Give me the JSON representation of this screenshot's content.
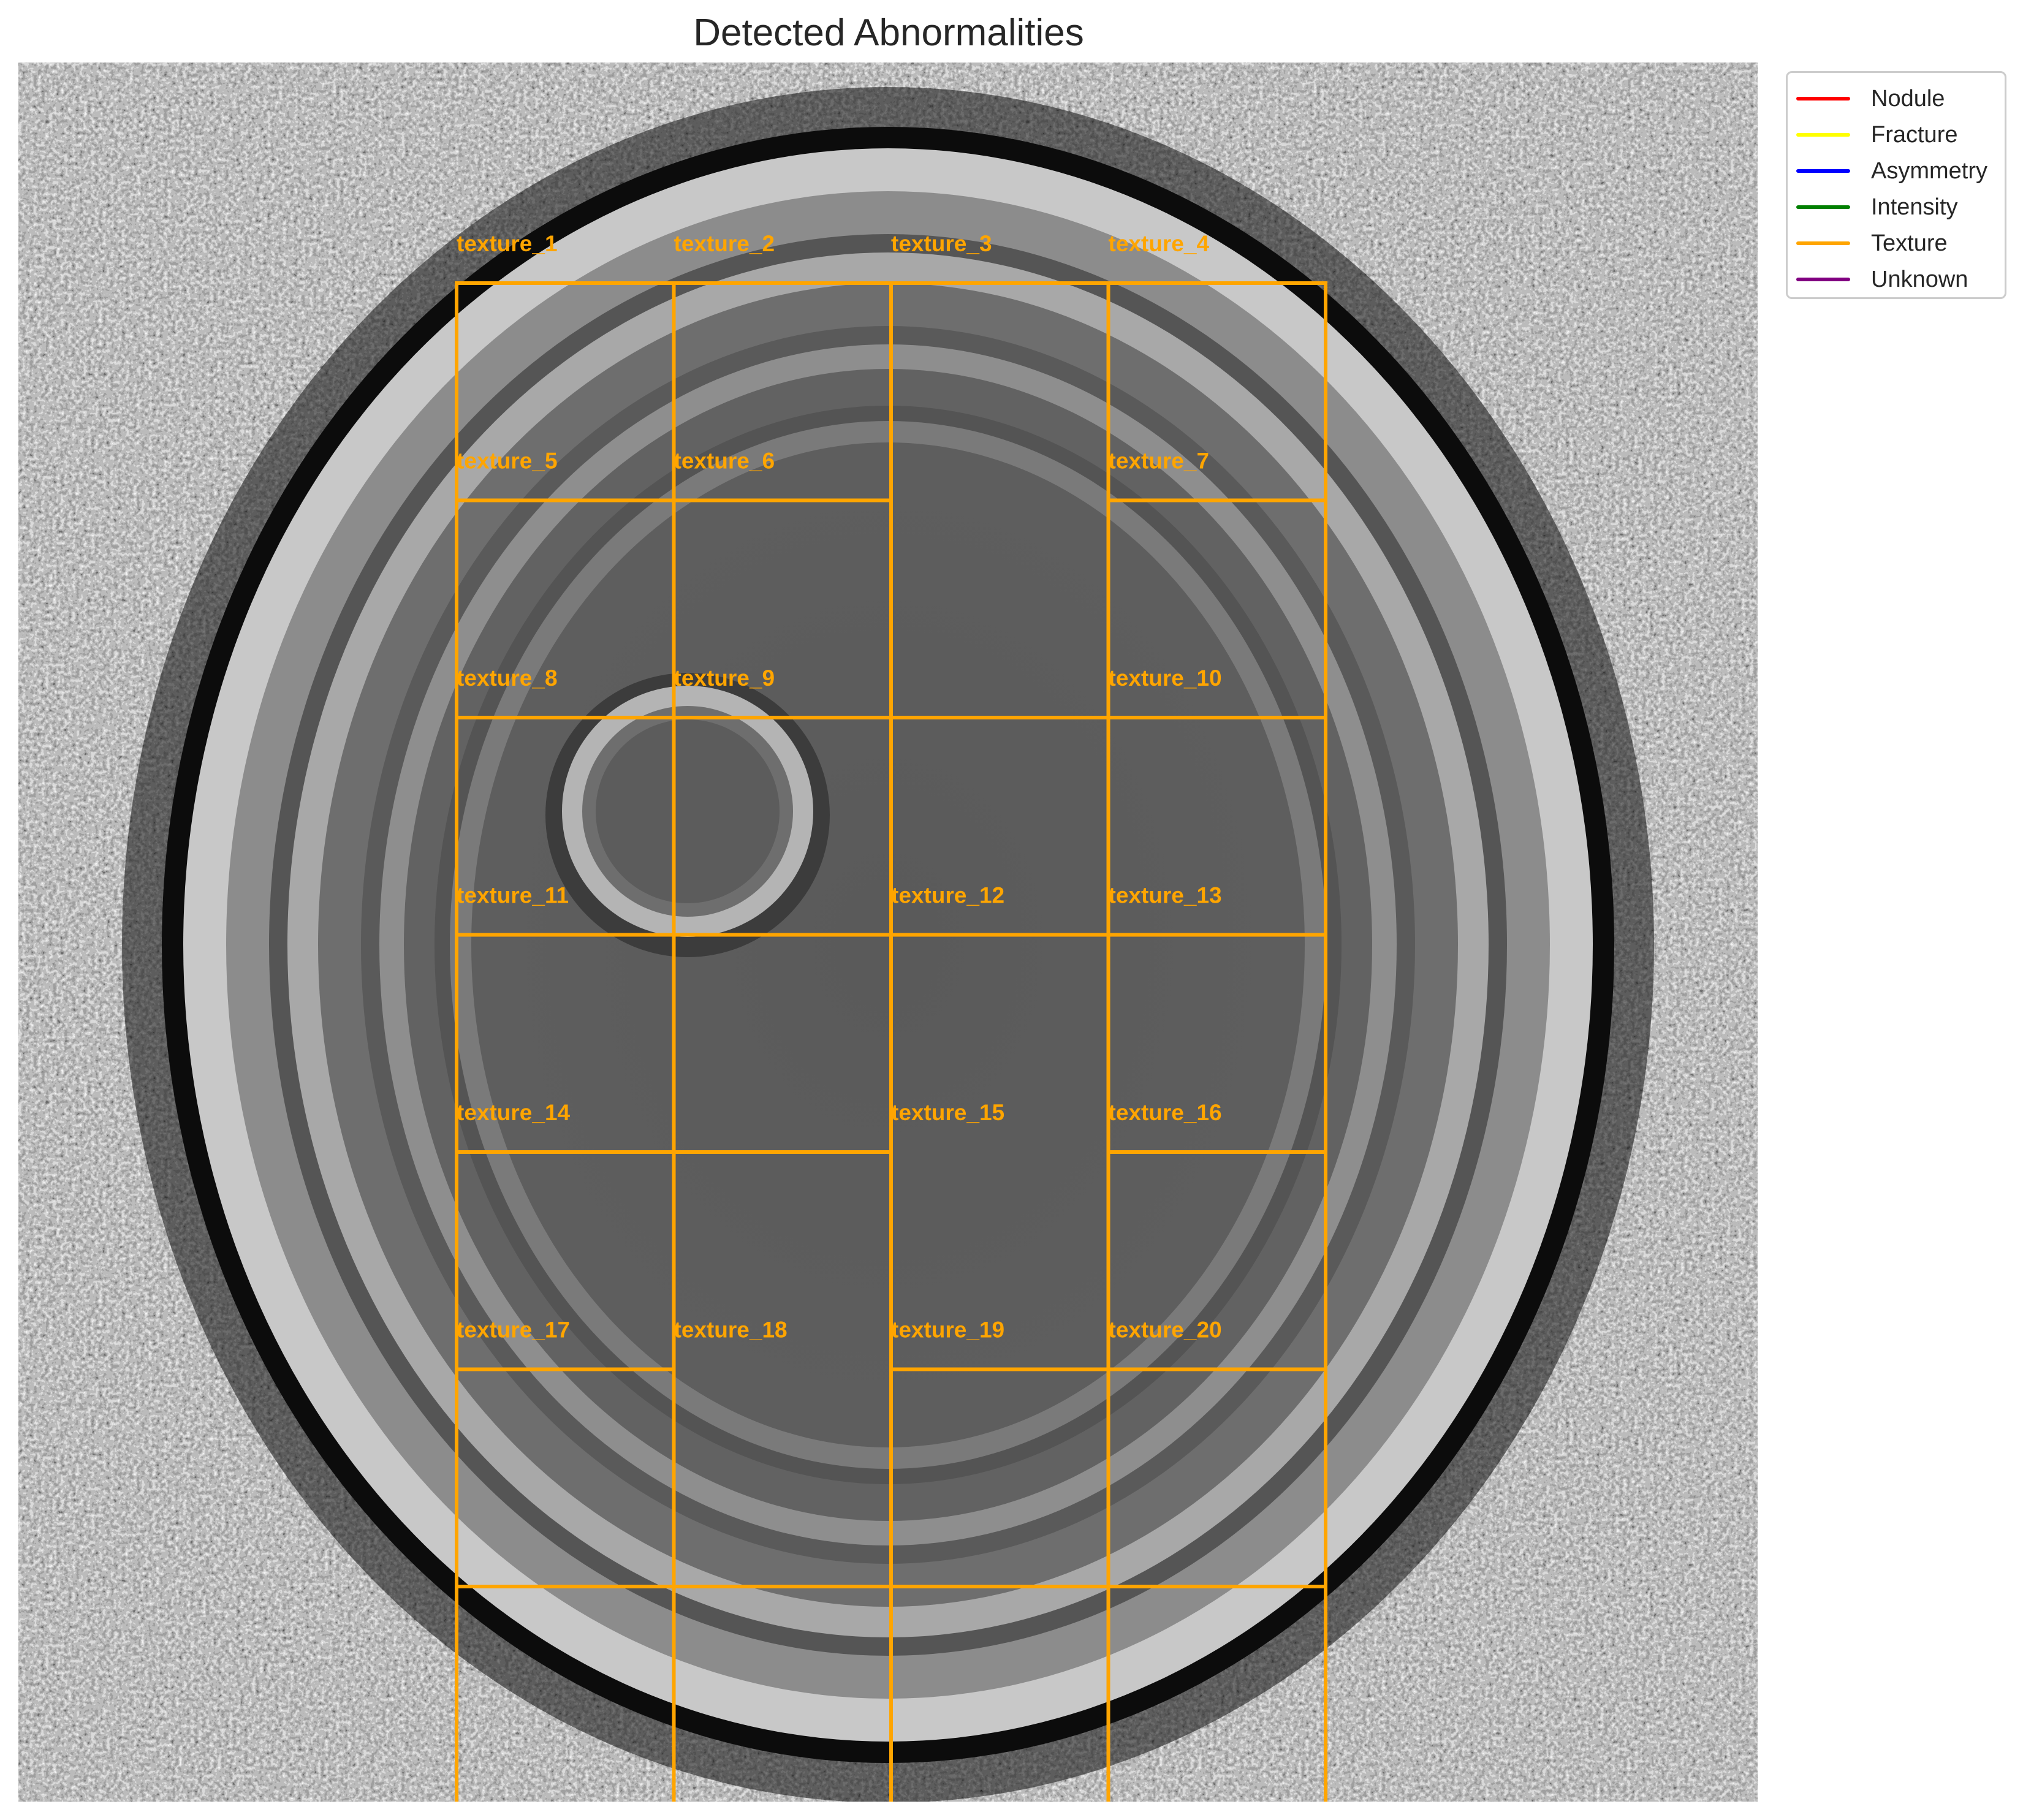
{
  "title": "Detected Abnormalities",
  "legend": {
    "items": [
      {
        "label": "Nodule",
        "color": "#ff0000"
      },
      {
        "label": "Fracture",
        "color": "#ffff00"
      },
      {
        "label": "Asymmetry",
        "color": "#0000ff"
      },
      {
        "label": "Intensity",
        "color": "#008000"
      },
      {
        "label": "Texture",
        "color": "#ffa500"
      },
      {
        "label": "Unknown",
        "color": "#800080"
      }
    ]
  },
  "regions": [
    {
      "label": "texture_1",
      "type": "Texture"
    },
    {
      "label": "texture_2",
      "type": "Texture"
    },
    {
      "label": "texture_3",
      "type": "Texture"
    },
    {
      "label": "texture_4",
      "type": "Texture"
    },
    {
      "label": "texture_5",
      "type": "Texture"
    },
    {
      "label": "texture_6",
      "type": "Texture"
    },
    {
      "label": "texture_7",
      "type": "Texture"
    },
    {
      "label": "texture_8",
      "type": "Texture"
    },
    {
      "label": "texture_9",
      "type": "Texture"
    },
    {
      "label": "texture_10",
      "type": "Texture"
    },
    {
      "label": "texture_11",
      "type": "Texture"
    },
    {
      "label": "texture_12",
      "type": "Texture"
    },
    {
      "label": "texture_13",
      "type": "Texture"
    },
    {
      "label": "texture_14",
      "type": "Texture"
    },
    {
      "label": "texture_15",
      "type": "Texture"
    },
    {
      "label": "texture_16",
      "type": "Texture"
    },
    {
      "label": "texture_17",
      "type": "Texture"
    },
    {
      "label": "texture_18",
      "type": "Texture"
    },
    {
      "label": "texture_19",
      "type": "Texture"
    },
    {
      "label": "texture_20",
      "type": "Texture"
    }
  ],
  "colors": {
    "texture_box": "#ffa500"
  }
}
